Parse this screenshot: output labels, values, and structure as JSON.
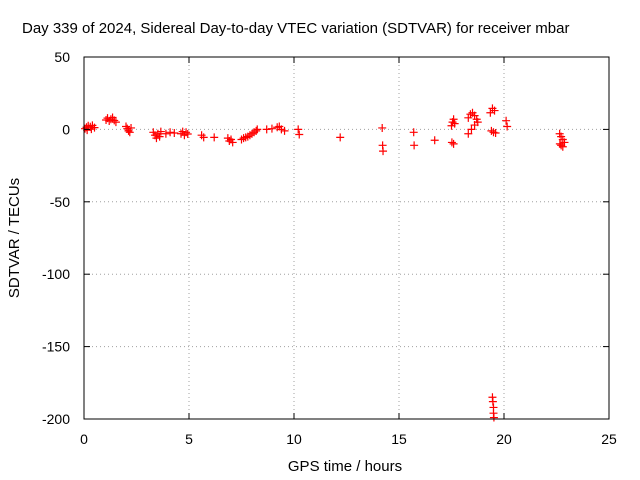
{
  "chart_data": {
    "type": "scatter",
    "title": "Day 339 of 2024, Sidereal Day-to-day VTEC variation (SDTVAR) for receiver mbar",
    "xlabel": "GPS time / hours",
    "ylabel": "SDTVAR / TECUs",
    "xlim": [
      0,
      25
    ],
    "ylim": [
      -200,
      50
    ],
    "xticks": [
      0,
      5,
      10,
      15,
      20,
      25
    ],
    "yticks": [
      50,
      0,
      -50,
      -100,
      -150,
      -200
    ],
    "grid": true,
    "marker": "plus",
    "color": "#ff0000",
    "series": [
      {
        "name": "SDTVAR",
        "points": [
          [
            0.05,
            0.5
          ],
          [
            0.12,
            1.5
          ],
          [
            0.2,
            2.5
          ],
          [
            0.3,
            1.8
          ],
          [
            0.4,
            2.8
          ],
          [
            0.5,
            1.2
          ],
          [
            0.15,
            -0.5
          ],
          [
            0.35,
            0.2
          ],
          [
            1.05,
            6.5
          ],
          [
            1.12,
            7.8
          ],
          [
            1.2,
            5.8
          ],
          [
            1.28,
            7.0
          ],
          [
            1.36,
            8.2
          ],
          [
            1.44,
            6.2
          ],
          [
            1.52,
            5.0
          ],
          [
            2.0,
            2.0
          ],
          [
            2.06,
            0.5
          ],
          [
            2.12,
            -1.0
          ],
          [
            2.18,
            -2.0
          ],
          [
            2.24,
            1.0
          ],
          [
            3.3,
            -2.0
          ],
          [
            3.38,
            -4.0
          ],
          [
            3.45,
            -6.0
          ],
          [
            3.52,
            -3.0
          ],
          [
            3.6,
            -5.0
          ],
          [
            3.66,
            -1.5
          ],
          [
            3.9,
            -3.0
          ],
          [
            4.1,
            -2.0
          ],
          [
            4.3,
            -2.5
          ],
          [
            4.62,
            -3.0
          ],
          [
            4.7,
            -1.5
          ],
          [
            4.78,
            -4.0
          ],
          [
            4.86,
            -2.0
          ],
          [
            4.94,
            -3.2
          ],
          [
            5.6,
            -4.0
          ],
          [
            5.7,
            -5.5
          ],
          [
            6.2,
            -5.5
          ],
          [
            6.85,
            -6.0
          ],
          [
            6.92,
            -8.0
          ],
          [
            7.0,
            -7.0
          ],
          [
            7.08,
            -9.0
          ],
          [
            7.5,
            -7.0
          ],
          [
            7.6,
            -6.0
          ],
          [
            7.7,
            -5.5
          ],
          [
            7.8,
            -5.0
          ],
          [
            7.9,
            -4.0
          ],
          [
            8.0,
            -3.0
          ],
          [
            8.1,
            -2.0
          ],
          [
            8.2,
            -1.0
          ],
          [
            8.25,
            0.0
          ],
          [
            8.7,
            0.0
          ],
          [
            8.95,
            0.5
          ],
          [
            9.2,
            1.5
          ],
          [
            9.3,
            2.0
          ],
          [
            9.4,
            0.0
          ],
          [
            9.55,
            -1.0
          ],
          [
            10.2,
            0.0
          ],
          [
            10.25,
            -3.5
          ],
          [
            12.2,
            -5.5
          ],
          [
            14.2,
            1.0
          ],
          [
            14.22,
            -11.0
          ],
          [
            14.24,
            -15.0
          ],
          [
            15.7,
            -2.0
          ],
          [
            15.72,
            -11.0
          ],
          [
            16.7,
            -7.5
          ],
          [
            17.5,
            2.5
          ],
          [
            17.55,
            5.0
          ],
          [
            17.6,
            7.0
          ],
          [
            17.65,
            4.0
          ],
          [
            17.52,
            -9.0
          ],
          [
            17.6,
            -10.0
          ],
          [
            18.3,
            8.0
          ],
          [
            18.4,
            10.5
          ],
          [
            18.5,
            11.5
          ],
          [
            18.6,
            9.5
          ],
          [
            18.7,
            7.0
          ],
          [
            18.3,
            -3.0
          ],
          [
            18.45,
            0.0
          ],
          [
            18.6,
            3.0
          ],
          [
            18.75,
            5.0
          ],
          [
            19.35,
            11.5
          ],
          [
            19.45,
            14.5
          ],
          [
            19.55,
            13.0
          ],
          [
            19.4,
            -1.0
          ],
          [
            19.5,
            -2.0
          ],
          [
            19.6,
            -2.5
          ],
          [
            19.45,
            -185.0
          ],
          [
            19.47,
            -188.0
          ],
          [
            19.5,
            -192.0
          ],
          [
            19.5,
            -196.0
          ],
          [
            19.52,
            -199.0
          ],
          [
            20.1,
            6.0
          ],
          [
            20.15,
            2.0
          ],
          [
            22.65,
            -3.0
          ],
          [
            22.72,
            -5.0
          ],
          [
            22.8,
            -7.0
          ],
          [
            22.88,
            -9.0
          ],
          [
            22.72,
            -11.0
          ],
          [
            22.8,
            -12.0
          ],
          [
            22.66,
            -10.0
          ]
        ]
      }
    ]
  }
}
